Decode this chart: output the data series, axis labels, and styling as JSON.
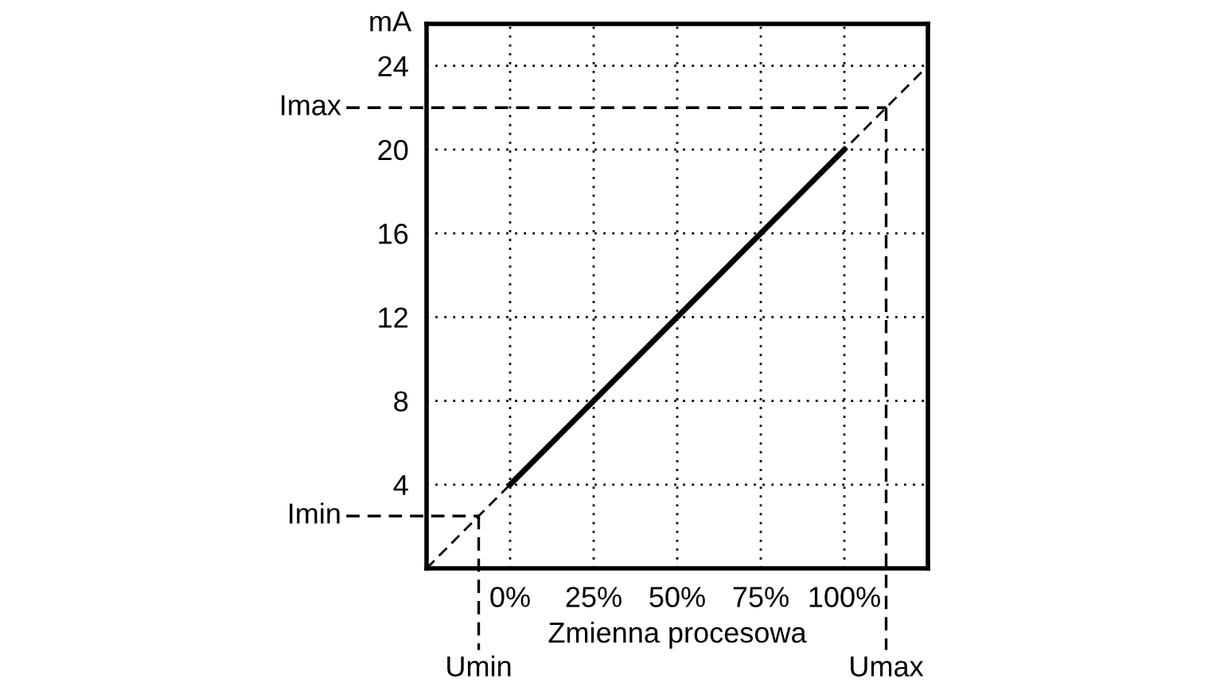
{
  "chart_data": {
    "type": "line",
    "xlabel": "Zmienna procesowa",
    "ylabel": "mA",
    "xlim": [
      -25,
      125
    ],
    "ylim": [
      0,
      26
    ],
    "xticks": [
      {
        "value": 0,
        "label": "0%"
      },
      {
        "value": 25,
        "label": "25%"
      },
      {
        "value": 50,
        "label": "50%"
      },
      {
        "value": 75,
        "label": "75%"
      },
      {
        "value": 100,
        "label": "100%"
      }
    ],
    "yticks": [
      4,
      8,
      12,
      16,
      20,
      24
    ],
    "grid": true,
    "series": [
      {
        "color": "#000000",
        "line_style": "dashed",
        "x": [
          -25,
          125
        ],
        "values": [
          0,
          24
        ]
      },
      {
        "color": "#000000",
        "line_style": "solid",
        "x": [
          0,
          100
        ],
        "values": [
          4,
          20
        ]
      }
    ],
    "ref_lines": [
      {
        "axis": "y",
        "value": 22,
        "label": "Imax",
        "line_style": "dashed"
      },
      {
        "axis": "y",
        "value": 2.5,
        "label": "Imin",
        "line_style": "dashed"
      },
      {
        "axis": "x",
        "value": -9.4,
        "label": "Umin",
        "line_style": "dashed"
      },
      {
        "axis": "x",
        "value": 112.5,
        "label": "Umax",
        "line_style": "dashed"
      }
    ]
  }
}
